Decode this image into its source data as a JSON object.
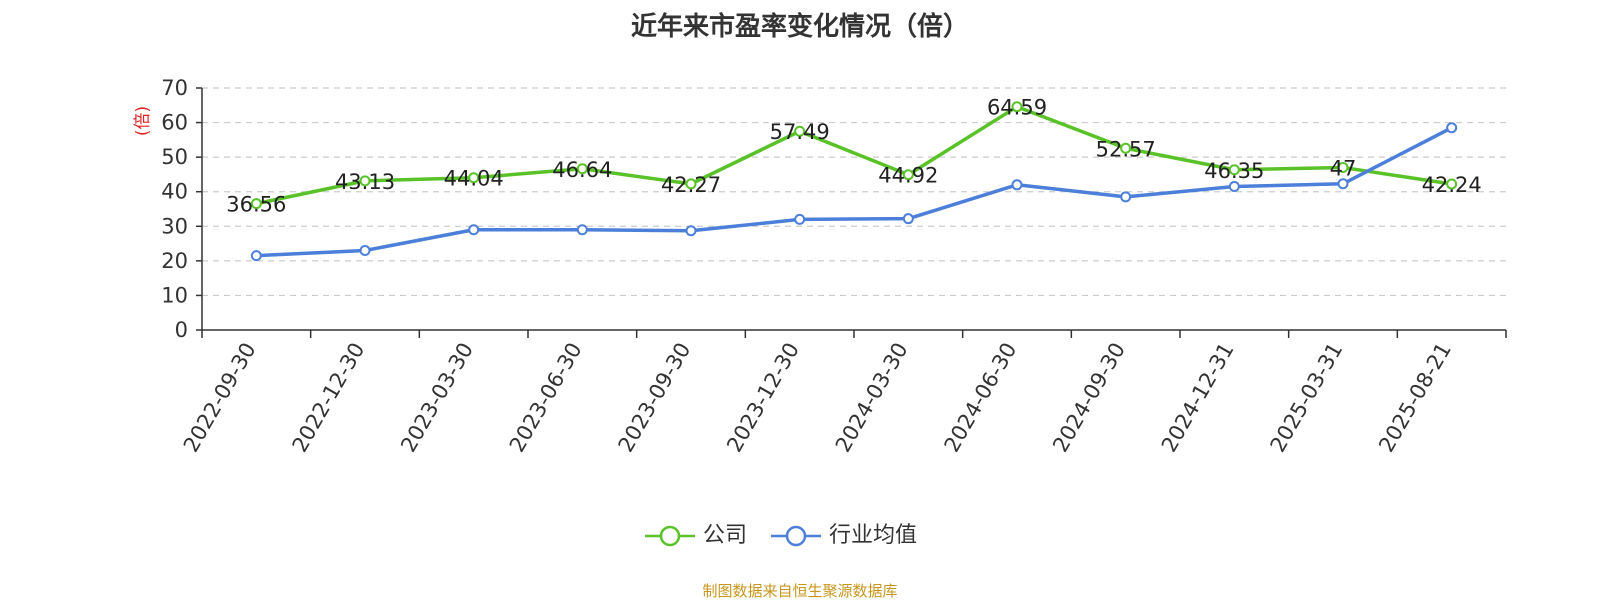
{
  "chart_data": {
    "type": "line",
    "title": "近年来市盈率变化情况（倍）",
    "ylabel": "(倍)",
    "ylim": [
      0,
      70
    ],
    "yticks": [
      0,
      10,
      20,
      30,
      40,
      50,
      60,
      70
    ],
    "grid": true,
    "legend_placement": "bottom-center",
    "categories": [
      "2022-09-30",
      "2022-12-30",
      "2023-03-30",
      "2023-06-30",
      "2023-09-30",
      "2023-12-30",
      "2024-03-30",
      "2024-06-30",
      "2024-09-30",
      "2024-12-31",
      "2025-03-31",
      "2025-08-21"
    ],
    "series": [
      {
        "name": "公司",
        "color": "#5ac229",
        "values": [
          36.56,
          43.13,
          44.04,
          46.64,
          42.27,
          57.49,
          44.92,
          64.59,
          52.57,
          46.35,
          47,
          42.24
        ],
        "labels": [
          "36.56",
          "43.13",
          "44.04",
          "46.64",
          "42.27",
          "57.49",
          "44.92",
          "64.59",
          "52.57",
          "46.35",
          "47",
          "42.24"
        ]
      },
      {
        "name": "行业均值",
        "color": "#4b7fd9",
        "values": [
          21.5,
          23,
          29,
          29,
          28.7,
          32,
          32.2,
          42,
          38.5,
          41.5,
          42.3,
          58.5
        ]
      }
    ],
    "ylabel_color": "#e02020"
  },
  "footer": {
    "source": "制图数据来自恒生聚源数据库"
  }
}
